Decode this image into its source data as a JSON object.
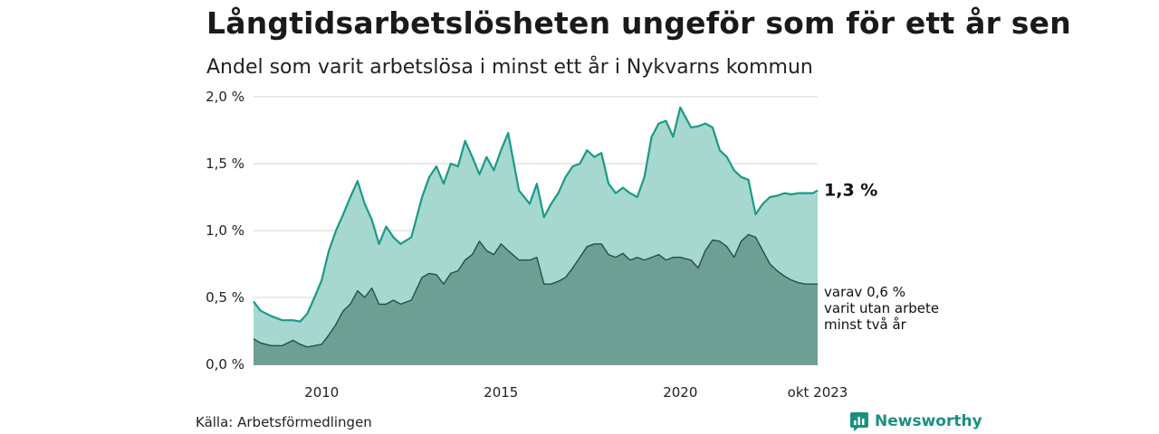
{
  "title": "Långtidsarbetslösheten ungeför som för ett år sen",
  "subtitle": "Andel som varit arbetslösa i minst ett år i Nykvarns kommun",
  "source": "Källa: Arbetsförmedlingen",
  "brand": "Newsworthy",
  "colors": {
    "line_main": "#1a9a88",
    "area_main": "#a6d8cf",
    "line_sub": "#2a4c44",
    "area_sub": "#6e9f95",
    "grid": "#d6d6d6"
  },
  "chart_data": {
    "type": "area",
    "title": "Långtidsarbetslösheten ungeför som för ett år sen",
    "subtitle": "Andel som varit arbetslösa i minst ett år i Nykvarns kommun",
    "ylim": [
      0,
      2.0
    ],
    "xlim": [
      2008.1,
      2023.83
    ],
    "y_ticks": [
      {
        "value": 0.0,
        "label": "0,0 %"
      },
      {
        "value": 0.5,
        "label": "0,5 %"
      },
      {
        "value": 1.0,
        "label": "1,0 %"
      },
      {
        "value": 1.5,
        "label": "1,5 %"
      },
      {
        "value": 2.0,
        "label": "2,0 %"
      }
    ],
    "x_ticks": [
      {
        "value": 2010,
        "label": "2010"
      },
      {
        "value": 2015,
        "label": "2015"
      },
      {
        "value": 2020,
        "label": "2020"
      },
      {
        "value": 2023.83,
        "label": "okt 2023"
      }
    ],
    "grid": true,
    "annotations": {
      "main_value_label": "1,3 %",
      "sub_lines": [
        "varav 0,6 %",
        "varit utan arbete",
        "minst två år"
      ]
    },
    "series": [
      {
        "key": "minst_ett_ar",
        "x": [
          2008.1,
          2008.3,
          2008.6,
          2008.9,
          2009.2,
          2009.4,
          2009.6,
          2009.8,
          2010.0,
          2010.2,
          2010.4,
          2010.6,
          2010.8,
          2011.0,
          2011.2,
          2011.4,
          2011.6,
          2011.8,
          2012.0,
          2012.2,
          2012.5,
          2012.8,
          2013.0,
          2013.2,
          2013.4,
          2013.6,
          2013.8,
          2014.0,
          2014.2,
          2014.4,
          2014.6,
          2014.8,
          2015.0,
          2015.2,
          2015.5,
          2015.8,
          2016.0,
          2016.2,
          2016.4,
          2016.6,
          2016.8,
          2017.0,
          2017.2,
          2017.4,
          2017.6,
          2017.8,
          2018.0,
          2018.2,
          2018.4,
          2018.6,
          2018.8,
          2019.0,
          2019.2,
          2019.4,
          2019.6,
          2019.8,
          2020.0,
          2020.3,
          2020.5,
          2020.7,
          2020.9,
          2021.1,
          2021.3,
          2021.5,
          2021.7,
          2021.9,
          2022.1,
          2022.3,
          2022.5,
          2022.7,
          2022.9,
          2023.1,
          2023.3,
          2023.5,
          2023.7,
          2023.83
        ],
        "values": [
          0.47,
          0.4,
          0.36,
          0.33,
          0.33,
          0.32,
          0.38,
          0.5,
          0.63,
          0.85,
          1.0,
          1.12,
          1.25,
          1.37,
          1.2,
          1.08,
          0.9,
          1.03,
          0.95,
          0.9,
          0.95,
          1.25,
          1.4,
          1.48,
          1.35,
          1.5,
          1.48,
          1.67,
          1.55,
          1.42,
          1.55,
          1.45,
          1.6,
          1.73,
          1.3,
          1.2,
          1.35,
          1.1,
          1.2,
          1.28,
          1.4,
          1.48,
          1.5,
          1.6,
          1.55,
          1.58,
          1.35,
          1.28,
          1.32,
          1.28,
          1.25,
          1.4,
          1.7,
          1.8,
          1.82,
          1.7,
          1.92,
          1.77,
          1.78,
          1.8,
          1.77,
          1.6,
          1.55,
          1.45,
          1.4,
          1.38,
          1.12,
          1.2,
          1.25,
          1.26,
          1.28,
          1.27,
          1.28,
          1.28,
          1.28,
          1.3
        ]
      },
      {
        "key": "varav_minst_tva_ar",
        "x": [
          2008.1,
          2008.3,
          2008.6,
          2008.9,
          2009.2,
          2009.4,
          2009.6,
          2009.8,
          2010.0,
          2010.2,
          2010.4,
          2010.6,
          2010.8,
          2011.0,
          2011.2,
          2011.4,
          2011.6,
          2011.8,
          2012.0,
          2012.2,
          2012.5,
          2012.8,
          2013.0,
          2013.2,
          2013.4,
          2013.6,
          2013.8,
          2014.0,
          2014.2,
          2014.4,
          2014.6,
          2014.8,
          2015.0,
          2015.2,
          2015.5,
          2015.8,
          2016.0,
          2016.2,
          2016.4,
          2016.6,
          2016.8,
          2017.0,
          2017.2,
          2017.4,
          2017.6,
          2017.8,
          2018.0,
          2018.2,
          2018.4,
          2018.6,
          2018.8,
          2019.0,
          2019.2,
          2019.4,
          2019.6,
          2019.8,
          2020.0,
          2020.3,
          2020.5,
          2020.7,
          2020.9,
          2021.1,
          2021.3,
          2021.5,
          2021.7,
          2021.9,
          2022.1,
          2022.3,
          2022.5,
          2022.7,
          2022.9,
          2023.1,
          2023.3,
          2023.5,
          2023.7,
          2023.83
        ],
        "values": [
          0.19,
          0.16,
          0.14,
          0.14,
          0.18,
          0.15,
          0.13,
          0.14,
          0.15,
          0.22,
          0.3,
          0.4,
          0.45,
          0.55,
          0.5,
          0.57,
          0.45,
          0.45,
          0.48,
          0.45,
          0.48,
          0.65,
          0.68,
          0.67,
          0.6,
          0.68,
          0.7,
          0.78,
          0.82,
          0.92,
          0.85,
          0.82,
          0.9,
          0.85,
          0.78,
          0.78,
          0.8,
          0.6,
          0.6,
          0.62,
          0.65,
          0.72,
          0.8,
          0.88,
          0.9,
          0.9,
          0.82,
          0.8,
          0.83,
          0.78,
          0.8,
          0.78,
          0.8,
          0.82,
          0.78,
          0.8,
          0.8,
          0.78,
          0.72,
          0.85,
          0.93,
          0.92,
          0.88,
          0.8,
          0.92,
          0.97,
          0.95,
          0.85,
          0.75,
          0.7,
          0.66,
          0.63,
          0.61,
          0.6,
          0.6,
          0.6
        ]
      }
    ]
  }
}
